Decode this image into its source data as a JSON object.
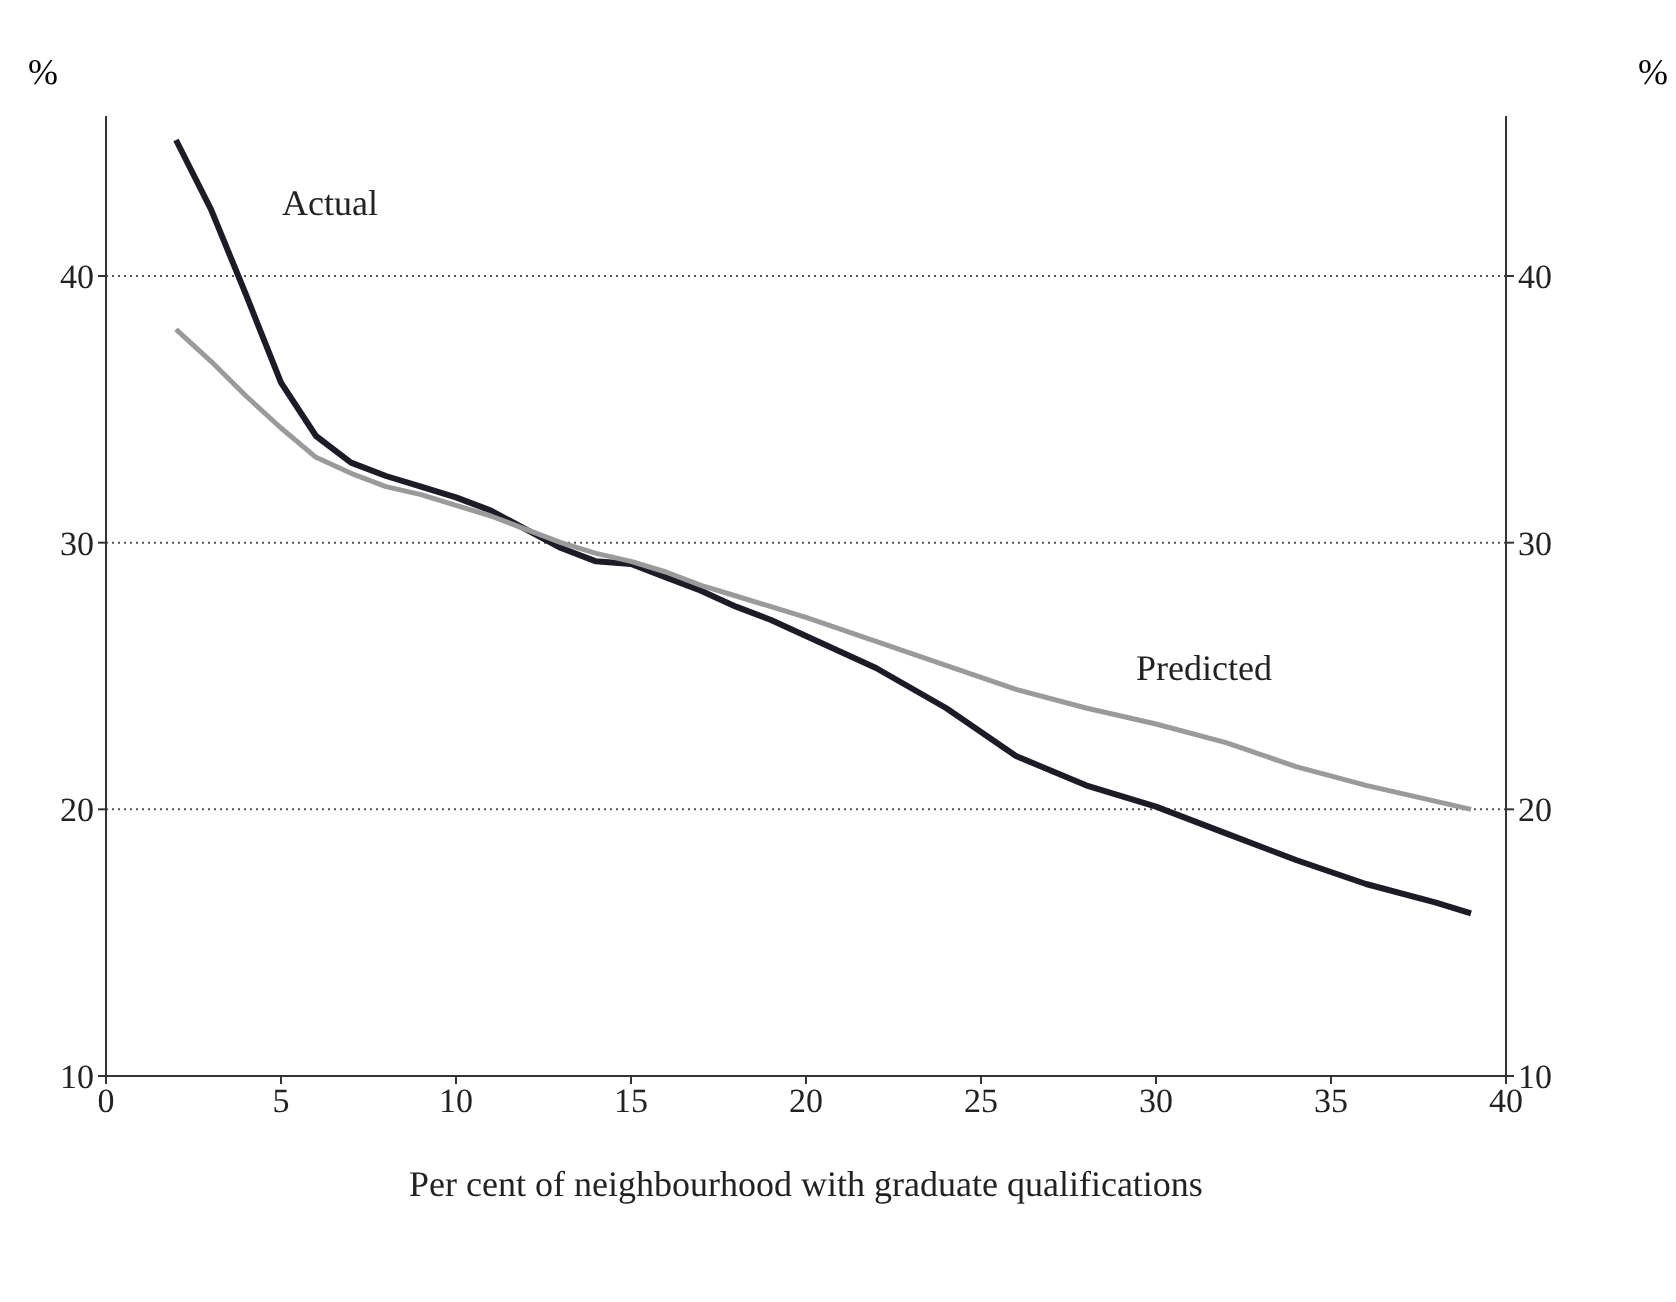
{
  "chart_data": {
    "type": "line",
    "xlabel": "Per cent of neighbourhood with graduate qualifications",
    "ylabel": "%",
    "y2label": "%",
    "x": [
      2,
      3,
      4,
      5,
      6,
      7,
      8,
      9,
      10,
      11,
      12,
      13,
      14,
      15,
      16,
      17,
      18,
      19,
      20,
      22,
      24,
      26,
      28,
      30,
      32,
      34,
      36,
      38,
      39
    ],
    "series": [
      {
        "name": "Actual",
        "color": "#1c1c28",
        "values": [
          45.1,
          42.5,
          39.3,
          36,
          34,
          33,
          32.5,
          32.1,
          31.7,
          31.2,
          30.5,
          29.8,
          29.3,
          29.2,
          28.7,
          28.2,
          27.6,
          27.1,
          26.5,
          25.3,
          23.8,
          22,
          20.9,
          20.1,
          19.1,
          18.1,
          17.2,
          16.5,
          16.1
        ]
      },
      {
        "name": "Predicted",
        "color": "#9a9a9a",
        "values": [
          38,
          36.8,
          35.5,
          34.3,
          33.2,
          32.6,
          32.1,
          31.8,
          31.4,
          31,
          30.5,
          30,
          29.6,
          29.3,
          28.9,
          28.4,
          28,
          27.6,
          27.2,
          26.3,
          25.4,
          24.5,
          23.8,
          23.2,
          22.5,
          21.6,
          20.9,
          20.3,
          20
        ]
      }
    ],
    "xlim": [
      0,
      40
    ],
    "xticks": [
      0,
      5,
      10,
      15,
      20,
      25,
      30,
      35,
      40
    ],
    "ylim": [
      10,
      46
    ],
    "yticks": [
      10,
      20,
      30,
      40
    ],
    "y2lim": [
      10,
      46
    ],
    "y2ticks": [
      10,
      20,
      30,
      40
    ],
    "grid": "y",
    "legend": false,
    "marker": "none",
    "line_style": "solid"
  }
}
